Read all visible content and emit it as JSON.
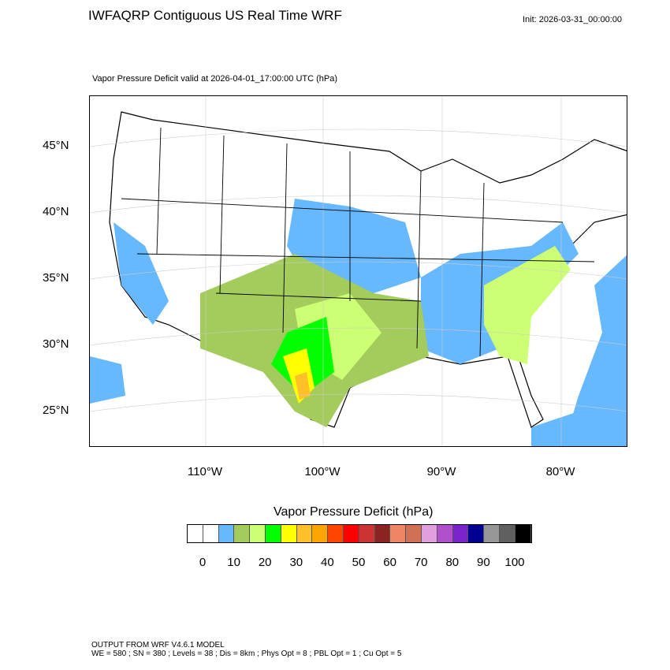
{
  "title": "IWFAQRP Contiguous US Real Time WRF",
  "init": "Init: 2026-03-31_00:00:00",
  "subtitle": "Vapor Pressure Deficit valid at 2026-04-01_17:00:00 UTC   (hPa)",
  "lat_labels": [
    "45°N",
    "40°N",
    "35°N",
    "30°N",
    "25°N"
  ],
  "lon_labels": [
    "110°W",
    "100°W",
    "90°W",
    "80°W"
  ],
  "colorbar": {
    "title": "Vapor Pressure Deficit  (hPa)",
    "colors": [
      "#ffffff",
      "#ffffff",
      "#66b8ff",
      "#a3cc5c",
      "#ccff73",
      "#00ff00",
      "#ffff00",
      "#ffc02a",
      "#ffa500",
      "#ff4500",
      "#ff0000",
      "#cc3333",
      "#8b2323",
      "#f08566",
      "#d07055",
      "#e0a0dd",
      "#b050cc",
      "#7a22cc",
      "#000090",
      "#969696",
      "#606060",
      "#000000"
    ],
    "labels": [
      "0",
      "10",
      "20",
      "30",
      "40",
      "50",
      "60",
      "70",
      "80",
      "90",
      "100"
    ]
  },
  "footer": {
    "line1": "OUTPUT FROM WRF V4.6.1 MODEL",
    "line2": "WE = 580 ; SN = 380 ; Levels = 38 ; Dis = 8km ; Phys Opt = 8 ; PBL Opt = 1 ; Cu Opt = 5"
  }
}
